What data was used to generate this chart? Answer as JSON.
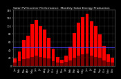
{
  "title": "Monthly Solar Energy Production",
  "subtitle": "Solar PV/Inverter Performance",
  "bar_values": [
    18,
    35,
    65,
    75,
    105,
    115,
    100,
    90,
    70,
    42,
    22,
    15,
    25,
    48,
    82,
    108,
    122,
    130,
    112,
    100,
    78,
    50,
    28,
    20
  ],
  "small_bar_values": [
    8,
    12,
    16,
    18,
    22,
    25,
    22,
    20,
    18,
    12,
    8,
    6,
    10,
    14,
    20,
    25,
    28,
    30,
    26,
    22,
    20,
    14,
    10,
    8
  ],
  "bar_color": "#ff0000",
  "small_bar_color": "#800000",
  "avg_line_value": 45,
  "avg_line_color": "#4444ff",
  "bg_color": "#000000",
  "plot_bg_color": "#000000",
  "grid_color": "#888888",
  "ylim": [
    0,
    140
  ],
  "yticks": [
    0,
    20,
    40,
    60,
    80,
    100,
    120,
    140
  ],
  "ytick_labels": [
    "0",
    "20",
    "40",
    "60",
    "80",
    "100",
    "120",
    "140"
  ],
  "months": [
    "Jan",
    "Feb",
    "Mar",
    "Apr",
    "May",
    "Jun",
    "Jul",
    "Aug",
    "Sep",
    "Oct",
    "Nov",
    "Dec",
    "Jan",
    "Feb",
    "Mar",
    "Apr",
    "May",
    "Jun",
    "Jul",
    "Aug",
    "Sep",
    "Oct",
    "Nov",
    "Dec"
  ],
  "title_fontsize": 3.2,
  "tick_fontsize": 2.5,
  "title_color": "#ffffff",
  "tick_color": "#ffffff",
  "bar_width": 0.8
}
